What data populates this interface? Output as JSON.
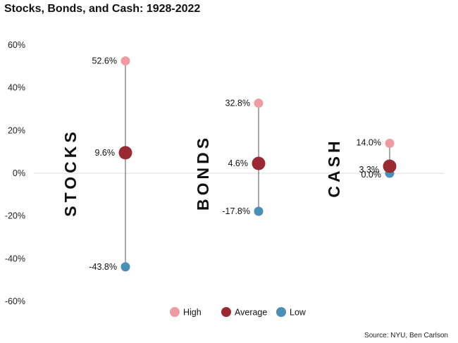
{
  "title": "Stocks, Bonds, and Cash: 1928-2022",
  "source": "Source: NYU, Ben Carlson",
  "colors": {
    "high": "#ee9ca2",
    "average": "#9b2932",
    "low": "#4a8fb6",
    "stem": "#555555",
    "zero_line": "#dddddd"
  },
  "chart_data": {
    "type": "scatter",
    "title": "Stocks, Bonds, and Cash: 1928-2022",
    "xlabel": "",
    "ylabel": "",
    "ylim": [
      -60,
      60
    ],
    "yticks": [
      60,
      40,
      20,
      0,
      -20,
      -40,
      -60
    ],
    "ytick_labels": [
      "60%",
      "40%",
      "20%",
      "0%",
      "-20%",
      "-40%",
      "-60%"
    ],
    "grid": false,
    "legend": "bottom",
    "categories": [
      "STOCKS",
      "BONDS",
      "CASH"
    ],
    "series": [
      {
        "name": "High",
        "values": [
          52.6,
          32.8,
          14.0
        ],
        "labels": [
          "52.6%",
          "32.8%",
          "14.0%"
        ]
      },
      {
        "name": "Average",
        "values": [
          9.6,
          4.6,
          3.3
        ],
        "labels": [
          "9.6%",
          "4.6%",
          "3.3%"
        ]
      },
      {
        "name": "Low",
        "values": [
          -43.8,
          -17.8,
          0.0
        ],
        "labels": [
          "-43.8%",
          "-17.8%",
          "0.0%"
        ]
      }
    ]
  }
}
